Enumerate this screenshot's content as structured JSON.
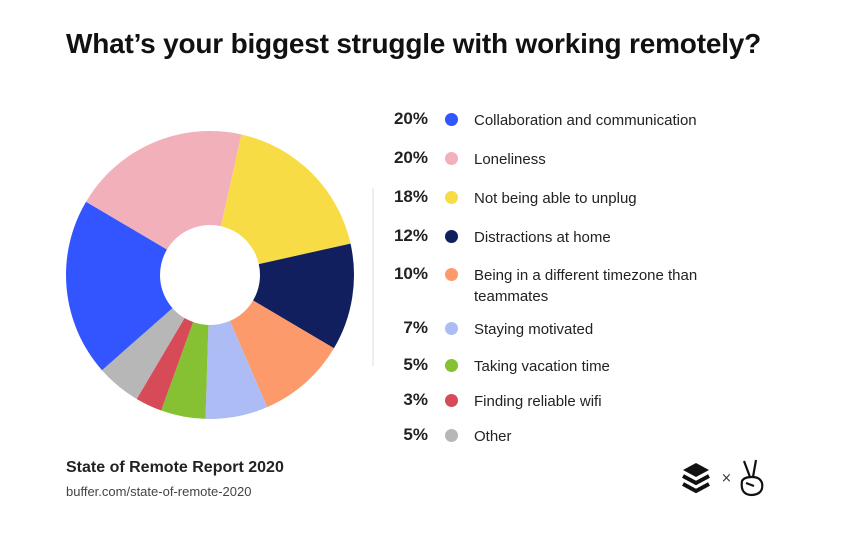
{
  "title": "What’s your biggest struggle with working remotely?",
  "source": {
    "title": "State of Remote Report 2020",
    "url": "buffer.com/state-of-remote-2020"
  },
  "logos": {
    "separator": "×",
    "left": "buffer-logo-icon",
    "right": "peace-hand-icon"
  },
  "chart_data": {
    "type": "pie",
    "donut": true,
    "title": "What’s your biggest struggle with working remotely?",
    "legend_position": "right",
    "slices": [
      {
        "label": "Collaboration and communication",
        "value": 20,
        "pct": "20%",
        "color": "#3355ff"
      },
      {
        "label": "Loneliness",
        "value": 20,
        "pct": "20%",
        "color": "#f2b0bb"
      },
      {
        "label": "Not being able to unplug",
        "value": 18,
        "pct": "18%",
        "color": "#f8dc46"
      },
      {
        "label": "Distractions at home",
        "value": 12,
        "pct": "12%",
        "color": "#121f5e"
      },
      {
        "label": "Being in a different timezone than teammates",
        "value": 10,
        "pct": "10%",
        "color": "#fd9a6c"
      },
      {
        "label": "Staying motivated",
        "value": 7,
        "pct": "7%",
        "color": "#aebcf5"
      },
      {
        "label": "Taking vacation time",
        "value": 5,
        "pct": "5%",
        "color": "#86c133"
      },
      {
        "label": "Finding reliable wifi",
        "value": 3,
        "pct": "3%",
        "color": "#d64b57"
      },
      {
        "label": "Other",
        "value": 5,
        "pct": "5%",
        "color": "#b7b7b7"
      }
    ],
    "clockwise_order": [
      2,
      3,
      4,
      5,
      6,
      7,
      8,
      0,
      1
    ]
  }
}
